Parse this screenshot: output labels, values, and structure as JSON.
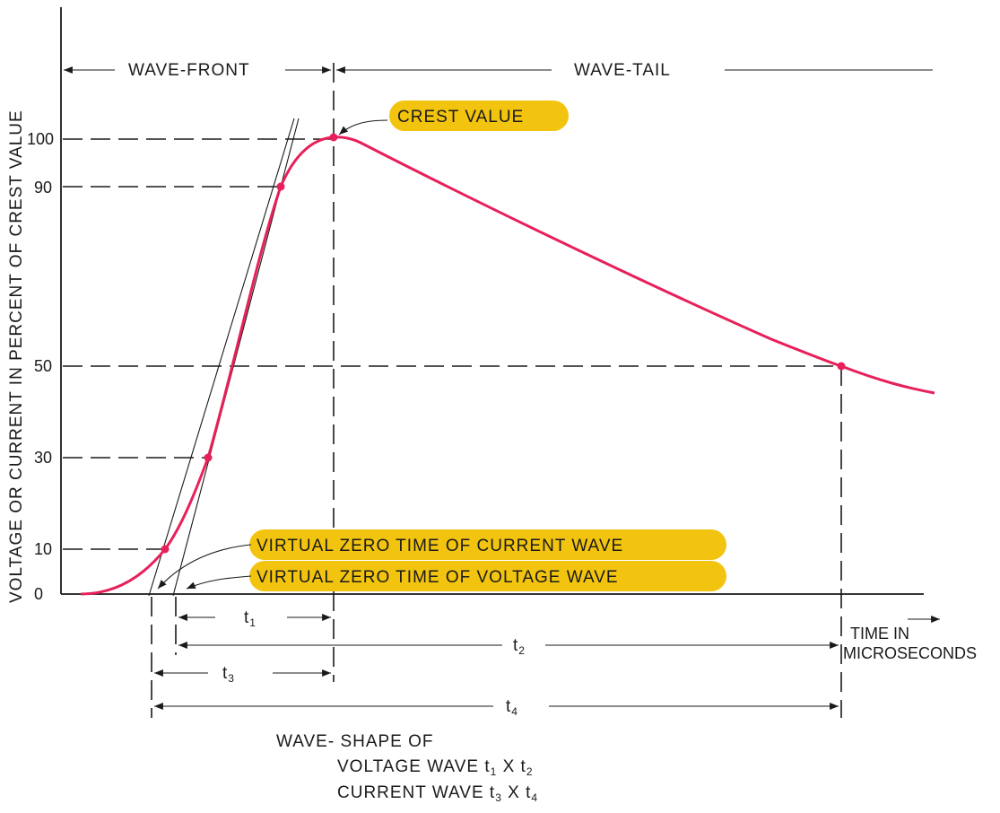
{
  "y_axis": {
    "label": "VOLTAGE OR CURRENT IN PERCENT OF CREST VALUE",
    "ticks": [
      "0",
      "10",
      "30",
      "50",
      "90",
      "100"
    ]
  },
  "top": {
    "wave_front": "WAVE-FRONT",
    "wave_tail": "WAVE-TAIL"
  },
  "callouts": {
    "crest": "CREST VALUE",
    "current_zero": "VIRTUAL ZERO TIME OF CURRENT WAVE",
    "voltage_zero": "VIRTUAL ZERO TIME OF VOLTAGE WAVE"
  },
  "x_axis": {
    "label_1": "TIME IN",
    "label_2": "MICROSECONDS"
  },
  "intervals": {
    "t1": "t",
    "t1_sub": "1",
    "t2": "t",
    "t2_sub": "2",
    "t3": "t",
    "t3_sub": "3",
    "t4": "t",
    "t4_sub": "4"
  },
  "caption": {
    "line1": "WAVE- SHAPE OF",
    "line2_a": "VOLTAGE WAVE t",
    "line2_b": "1",
    "line2_c": " X t",
    "line2_d": "2",
    "line3_a": "CURRENT WAVE t",
    "line3_b": "3",
    "line3_c": " X t",
    "line3_d": "4"
  },
  "colors": {
    "curve": "#e8205a",
    "callout": "#f2c40f",
    "ink": "#1a1a1a"
  }
}
